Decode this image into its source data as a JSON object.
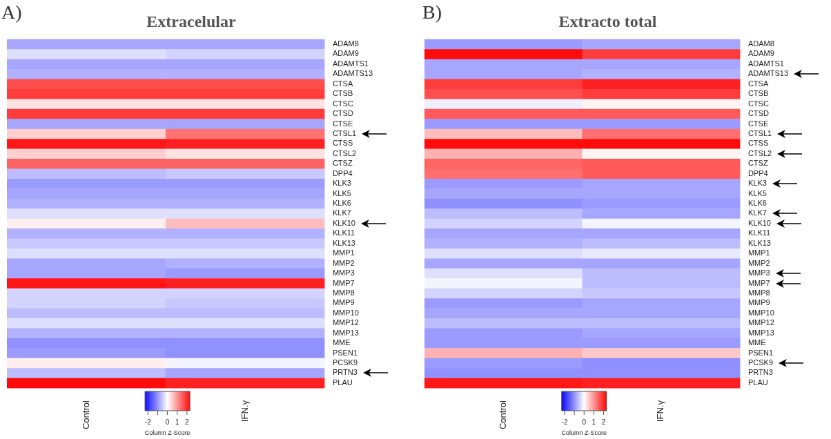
{
  "chart_data": [
    {
      "type": "heatmap",
      "title": "Extracelular",
      "annotations": [
        "A)"
      ],
      "categories": [
        "Control",
        "IFN.γ"
      ],
      "y_categories": [
        "ADAM8",
        "ADAM9",
        "ADAMTS1",
        "ADAMTS13",
        "CTSA",
        "CTSB",
        "CTSC",
        "CTSD",
        "CTSE",
        "CTSL1",
        "CTSS",
        "CTSL2",
        "CTSZ",
        "DPP4",
        "KLK3",
        "KLK5",
        "KLK6",
        "KLK7",
        "KLK10",
        "KLK11",
        "KLK13",
        "MMP1",
        "MMP2",
        "MMP3",
        "MMP7",
        "MMP8",
        "MMP9",
        "MMP10",
        "MMP12",
        "MMP13",
        "MME",
        "PSEN1",
        "PCSK9",
        "PRTN3",
        "PLAU"
      ],
      "cells": [
        [
          -0.8,
          -0.8
        ],
        [
          -0.3,
          -0.4
        ],
        [
          -0.8,
          -0.8
        ],
        [
          -0.7,
          -0.7
        ],
        [
          1.6,
          1.6
        ],
        [
          1.75,
          1.75
        ],
        [
          0.26,
          0.26
        ],
        [
          1.75,
          1.75
        ],
        [
          -0.8,
          -0.8
        ],
        [
          0.44,
          1.26
        ],
        [
          2.1,
          2.0
        ],
        [
          0.44,
          0.26
        ],
        [
          1.4,
          1.4
        ],
        [
          -0.6,
          -0.5
        ],
        [
          -0.9,
          -0.9
        ],
        [
          -0.8,
          -0.8
        ],
        [
          -0.7,
          -0.7
        ],
        [
          -0.3,
          -0.3
        ],
        [
          0.15,
          0.6
        ],
        [
          -0.7,
          -0.7
        ],
        [
          -0.5,
          -0.5
        ],
        [
          -0.3,
          -0.3
        ],
        [
          -0.8,
          -0.7
        ],
        [
          -0.8,
          -0.9
        ],
        [
          2.1,
          2.0
        ],
        [
          -0.4,
          -0.4
        ],
        [
          -0.4,
          -0.5
        ],
        [
          -0.6,
          -0.6
        ],
        [
          -0.3,
          -0.3
        ],
        [
          -0.7,
          -0.7
        ],
        [
          -1.0,
          -1.0
        ],
        [
          -0.9,
          -1.0
        ],
        [
          0.15,
          -0.1
        ],
        [
          -0.6,
          -0.8
        ],
        [
          2.2,
          2.0
        ]
      ],
      "clim": [
        -2.3,
        2.3
      ],
      "cticks": [
        -2,
        {
          "value": -1,
          "label": null
        },
        0,
        1,
        2
      ],
      "clabel": "Column Z-Score"
    },
    {
      "type": "heatmap",
      "title": "Extracto total",
      "annotations": [
        "B)"
      ],
      "categories": [
        "Control",
        "IFN.γ"
      ],
      "y_categories": [
        "ADAM8",
        "ADAM9",
        "ADAMTS1",
        "ADAMTS13",
        "CTSA",
        "CTSB",
        "CTSC",
        "CTSD",
        "CTSE",
        "CTSL1",
        "CTSS",
        "CTSL2",
        "CTSZ",
        "DPP4",
        "KLK3",
        "KLK5",
        "KLK6",
        "KLK7",
        "KLK10",
        "KLK11",
        "KLK13",
        "MMP1",
        "MMP2",
        "MMP3",
        "MMP7",
        "MMP8",
        "MMP9",
        "MMP10",
        "MMP12",
        "MMP13",
        "MME",
        "PSEN1",
        "PCSK9",
        "PRTN3",
        "PLAU"
      ],
      "cells": [
        [
          -0.9,
          -0.8
        ],
        [
          2.2,
          1.75
        ],
        [
          -0.8,
          -0.8
        ],
        [
          -0.8,
          -0.7
        ],
        [
          1.75,
          2.0
        ],
        [
          1.6,
          1.75
        ],
        [
          -0.15,
          0.1
        ],
        [
          1.5,
          1.5
        ],
        [
          -0.9,
          -0.9
        ],
        [
          0.6,
          1.3
        ],
        [
          2.2,
          2.2
        ],
        [
          0.7,
          0.1
        ],
        [
          1.4,
          1.5
        ],
        [
          1.3,
          1.5
        ],
        [
          -0.9,
          -0.8
        ],
        [
          -0.8,
          -0.8
        ],
        [
          -1.0,
          -0.9
        ],
        [
          -0.6,
          -0.8
        ],
        [
          -0.4,
          -0.1
        ],
        [
          -0.8,
          -0.8
        ],
        [
          -0.7,
          -0.6
        ],
        [
          -0.3,
          -0.2
        ],
        [
          -0.8,
          -0.8
        ],
        [
          -0.3,
          -0.6
        ],
        [
          -0.1,
          -0.6
        ],
        [
          -0.4,
          -0.5
        ],
        [
          -0.9,
          -0.8
        ],
        [
          -0.8,
          -0.8
        ],
        [
          -0.6,
          -0.6
        ],
        [
          -0.9,
          -0.8
        ],
        [
          -0.9,
          -0.9
        ],
        [
          0.7,
          0.5
        ],
        [
          -0.9,
          -1.0
        ],
        [
          -1.0,
          -1.0
        ],
        [
          2.1,
          2.0
        ]
      ],
      "clim": [
        -2.3,
        2.3
      ],
      "cticks": [
        -2,
        {
          "value": -1,
          "label": null
        },
        0,
        1,
        2
      ],
      "clabel": "Column Z-Score"
    }
  ]
}
